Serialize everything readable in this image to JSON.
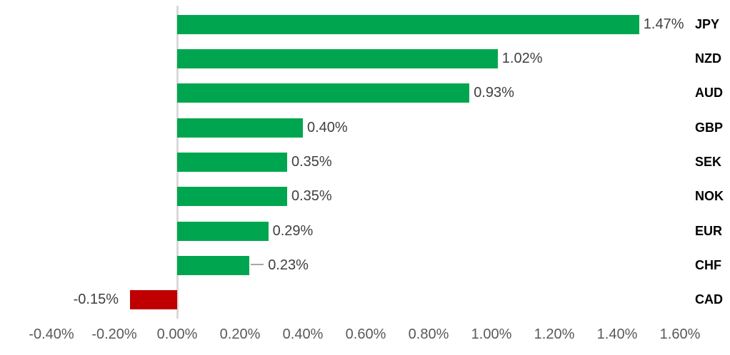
{
  "chart_data": {
    "type": "bar",
    "orientation": "horizontal",
    "title": "",
    "xlabel": "",
    "ylabel": "",
    "categories": [
      "JPY",
      "NZD",
      "AUD",
      "GBP",
      "SEK",
      "NOK",
      "EUR",
      "CHF",
      "CAD"
    ],
    "values": [
      1.47,
      1.02,
      0.93,
      0.4,
      0.35,
      0.35,
      0.29,
      0.23,
      -0.15
    ],
    "value_labels": [
      "1.47%",
      "1.02%",
      "0.93%",
      "0.40%",
      "0.35%",
      "0.35%",
      "0.29%",
      "0.23%",
      "-0.15%"
    ],
    "x_ticks": [
      "-0.40%",
      "-0.20%",
      "0.00%",
      "0.20%",
      "0.40%",
      "0.60%",
      "0.80%",
      "1.00%",
      "1.20%",
      "1.40%",
      "1.60%"
    ],
    "x_tick_values": [
      -0.4,
      -0.2,
      0.0,
      0.2,
      0.4,
      0.6,
      0.8,
      1.0,
      1.2,
      1.4,
      1.6
    ],
    "xlim": [
      -0.4,
      1.6
    ],
    "grid": false,
    "legend": false,
    "leader_line_category": "CHF",
    "colors": {
      "positive_bar": "#00a64f",
      "negative_bar": "#c00000",
      "axis_line": "#d9d9d9",
      "tick_label": "#595959",
      "value_label": "#404040",
      "category_label": "#000000",
      "leader_line": "#a6a6a6",
      "background": "#ffffff"
    }
  }
}
